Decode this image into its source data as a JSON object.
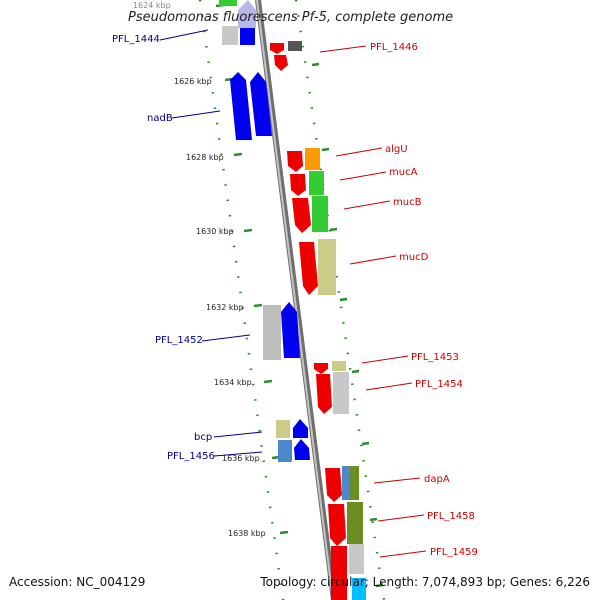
{
  "title": "Pseudomonas fluorescens Pf-5, complete genome",
  "footer": {
    "accession": "Accession: NC_004129",
    "summary": "Topology: circular; Length: 7,074,893 bp; Genes: 6,226"
  },
  "colors": {
    "backbone": "#999999",
    "ticks": "#2e8b2e",
    "label_forward": "#cc0000",
    "label_reverse": "#00008b"
  },
  "position_ticks": [
    {
      "label": "1624 kbp"
    },
    {
      "label": "1626 kbp"
    },
    {
      "label": "1628 kbp"
    },
    {
      "label": "1630 kbp"
    },
    {
      "label": "1632 kbp"
    },
    {
      "label": "1634 kbp"
    },
    {
      "label": "1636 kbp"
    },
    {
      "label": "1638 kbp"
    }
  ],
  "gene_labels": [
    {
      "name": "PFL_1444"
    },
    {
      "name": "PFL_1446"
    },
    {
      "name": "nadB"
    },
    {
      "name": "algU"
    },
    {
      "name": "mucA"
    },
    {
      "name": "mucB"
    },
    {
      "name": "mucD"
    },
    {
      "name": "PFL_1452"
    },
    {
      "name": "PFL_1453"
    },
    {
      "name": "PFL_1454"
    },
    {
      "name": "bcp"
    },
    {
      "name": "PFL_1456"
    },
    {
      "name": "dapA"
    },
    {
      "name": "PFL_1458"
    },
    {
      "name": "PFL_1459"
    }
  ]
}
